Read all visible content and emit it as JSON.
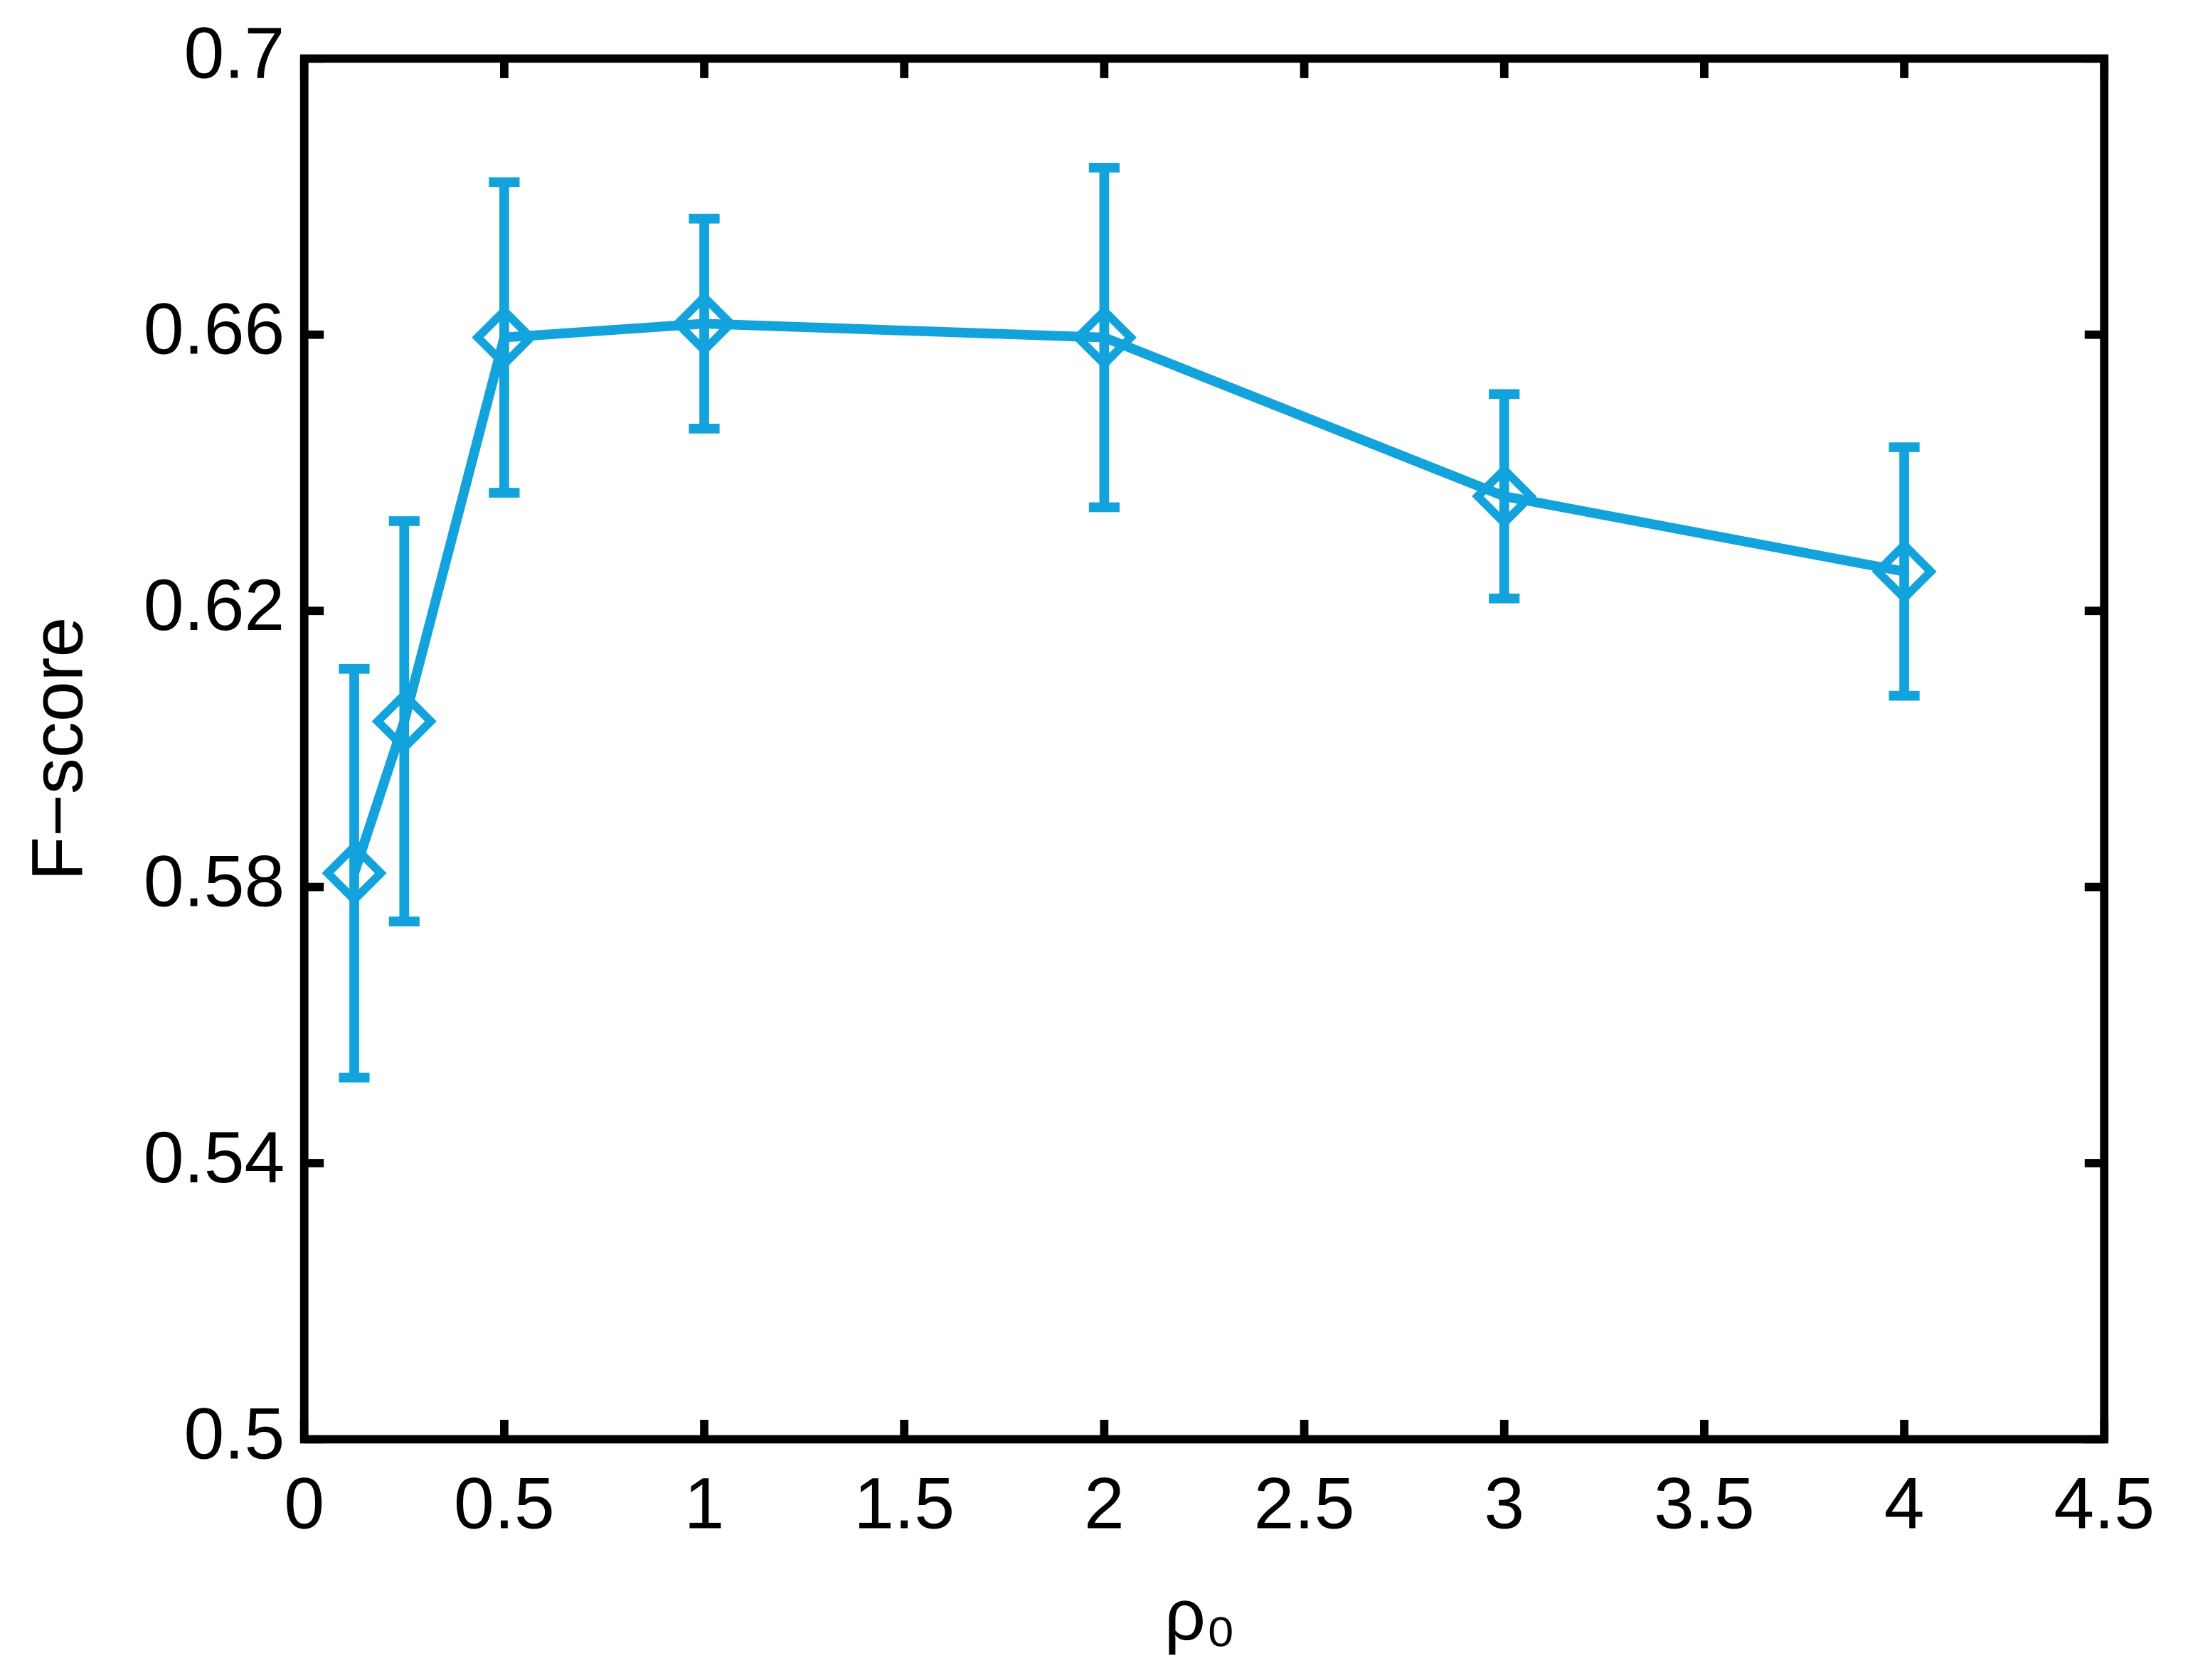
{
  "chart_data": {
    "type": "line",
    "x_label": "ρ₀",
    "y_label": "F−score",
    "x": [
      0.125,
      0.25,
      0.5,
      1,
      2,
      3,
      4
    ],
    "values": [
      0.582,
      0.604,
      0.6596,
      0.6616,
      0.6596,
      0.6366,
      0.6257
    ],
    "errors": [
      0.0296,
      0.029,
      0.0225,
      0.0152,
      0.0246,
      0.0148,
      0.018
    ],
    "color": "#13a3dc",
    "marker": "diamond",
    "xlim": [
      0,
      4.5
    ],
    "xticks": [
      0,
      0.5,
      1,
      1.5,
      2,
      2.5,
      3,
      3.5,
      4,
      4.5
    ],
    "ylim": [
      0.5,
      0.7
    ],
    "yticks": [
      0.5,
      0.54,
      0.58,
      0.62,
      0.66,
      0.7
    ],
    "grid": false
  }
}
